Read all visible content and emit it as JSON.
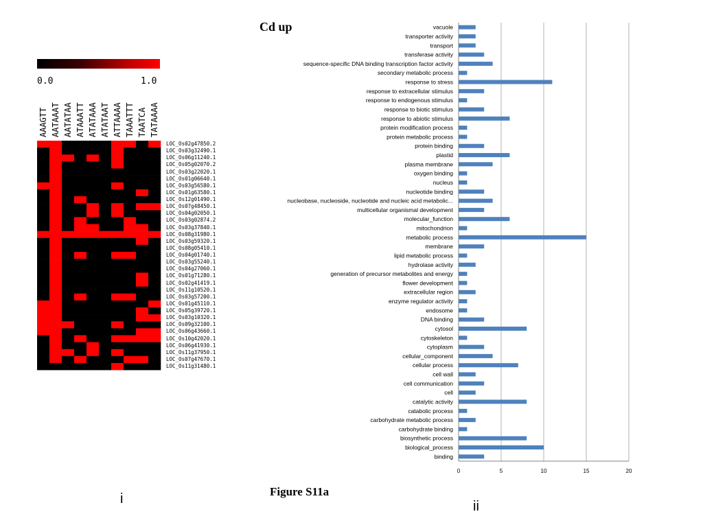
{
  "header": {
    "title": "Cd up"
  },
  "caption": {
    "figure": "Figure S11a",
    "panel_left": "i",
    "panel_right": "ii"
  },
  "colorbar": {
    "min_label": "0.0",
    "max_label": "1.0",
    "low_color": "#000000",
    "high_color": "#ff0000"
  },
  "heatmap": {
    "on_color": "#ff0000",
    "off_color": "#000000",
    "columns": [
      "AAAGTT",
      "AATAAAT",
      "AATATAA",
      "ATAAATT",
      "ATATAAA",
      "ATATAAT",
      "ATTAAAA",
      "TAAATTT",
      "TAATCA",
      "TATAAAA"
    ],
    "rows": [
      "LOC_Os02g47850.2",
      "LOC_Os03g32490.1",
      "LOC_Os06g11240.1",
      "LOC_Os05g02070.2",
      "LOC_Os03g22020.1",
      "LOC_Os01g06640.1",
      "LOC_Os03g56580.1",
      "LOC_Os01g63580.1",
      "LOC_Os12g01490.1",
      "LOC_Os07g48450.1",
      "LOC_Os04g02050.1",
      "LOC_Os03g02874.2",
      "LOC_Os03g37840.1",
      "LOC_Os08g31980.1",
      "LOC_Os03g59320.1",
      "LOC_Os08g05410.1",
      "LOC_Os04g01740.1",
      "LOC_Os03g55240.1",
      "LOC_Os04g27060.1",
      "LOC_Os01g71280.1",
      "LOC_Os02g41419.1",
      "LOC_Os11g10520.1",
      "LOC_Os03g57200.1",
      "LOC_Os01g45110.1",
      "LOC_Os05g39720.1",
      "LOC_Os03g10320.1",
      "LOC_Os09g32100.1",
      "LOC_Os06g43660.1",
      "LOC_Os10g42020.1",
      "LOC_Os06g41930.1",
      "LOC_Os11g37950.1",
      "LOC_Os07g47670.1",
      "LOC_Os11g31480.1"
    ],
    "cells": [
      [
        1,
        1,
        0,
        0,
        0,
        0,
        1,
        1,
        0,
        1
      ],
      [
        0,
        1,
        0,
        0,
        0,
        0,
        1,
        0,
        0,
        0
      ],
      [
        0,
        1,
        1,
        0,
        1,
        0,
        1,
        0,
        0,
        0
      ],
      [
        0,
        1,
        0,
        0,
        0,
        0,
        1,
        0,
        0,
        0
      ],
      [
        0,
        1,
        0,
        0,
        0,
        0,
        0,
        0,
        0,
        0
      ],
      [
        0,
        1,
        0,
        0,
        0,
        0,
        0,
        0,
        0,
        0
      ],
      [
        1,
        1,
        0,
        0,
        0,
        0,
        1,
        0,
        0,
        0
      ],
      [
        0,
        1,
        0,
        0,
        0,
        0,
        0,
        0,
        1,
        0
      ],
      [
        0,
        1,
        0,
        1,
        0,
        0,
        0,
        0,
        0,
        0
      ],
      [
        0,
        1,
        0,
        0,
        1,
        0,
        1,
        0,
        1,
        1
      ],
      [
        0,
        1,
        0,
        0,
        1,
        0,
        1,
        0,
        0,
        0
      ],
      [
        0,
        1,
        0,
        1,
        0,
        0,
        0,
        1,
        0,
        0
      ],
      [
        0,
        1,
        0,
        1,
        1,
        0,
        0,
        1,
        1,
        0
      ],
      [
        1,
        1,
        1,
        1,
        1,
        1,
        1,
        1,
        1,
        1
      ],
      [
        0,
        1,
        0,
        0,
        0,
        0,
        0,
        0,
        1,
        0
      ],
      [
        0,
        1,
        0,
        0,
        0,
        0,
        0,
        0,
        0,
        0
      ],
      [
        0,
        1,
        0,
        1,
        0,
        0,
        1,
        1,
        0,
        0
      ],
      [
        0,
        1,
        0,
        0,
        0,
        0,
        0,
        0,
        0,
        0
      ],
      [
        0,
        1,
        0,
        0,
        0,
        0,
        0,
        0,
        0,
        0
      ],
      [
        0,
        1,
        0,
        0,
        0,
        0,
        0,
        0,
        1,
        0
      ],
      [
        0,
        1,
        0,
        0,
        0,
        0,
        0,
        0,
        1,
        0
      ],
      [
        0,
        1,
        0,
        0,
        0,
        0,
        0,
        0,
        0,
        0
      ],
      [
        0,
        1,
        0,
        1,
        0,
        0,
        1,
        1,
        0,
        0
      ],
      [
        1,
        1,
        0,
        0,
        0,
        0,
        0,
        0,
        0,
        1
      ],
      [
        1,
        1,
        0,
        0,
        0,
        0,
        0,
        0,
        1,
        0
      ],
      [
        1,
        1,
        0,
        0,
        0,
        0,
        0,
        0,
        1,
        1
      ],
      [
        1,
        1,
        1,
        0,
        0,
        0,
        1,
        0,
        0,
        0
      ],
      [
        1,
        1,
        0,
        0,
        0,
        0,
        0,
        0,
        1,
        1
      ],
      [
        0,
        1,
        0,
        1,
        0,
        0,
        1,
        1,
        1,
        1
      ],
      [
        0,
        1,
        0,
        0,
        1,
        0,
        0,
        0,
        0,
        0
      ],
      [
        0,
        1,
        1,
        0,
        1,
        0,
        1,
        0,
        0,
        0
      ],
      [
        0,
        1,
        0,
        1,
        0,
        0,
        0,
        1,
        1,
        0
      ],
      [
        0,
        0,
        0,
        0,
        0,
        0,
        1,
        0,
        0,
        0
      ]
    ]
  },
  "chart_data": {
    "type": "bar",
    "orientation": "horizontal",
    "bar_color": "#4f81bd",
    "grid": true,
    "xlim": [
      0,
      20
    ],
    "xticks": [
      0,
      5,
      10,
      15,
      20
    ],
    "categories": [
      "vacuole",
      "transporter activity",
      "transport",
      "transferase activity",
      "sequence-specific DNA binding transcription factor activity",
      "secondary metabolic process",
      "response to stress",
      "response to extracellular stimulus",
      "response to endogenous stimulus",
      "response to biotic stimulus",
      "response to abiotic stimulus",
      "protein modification process",
      "protein metabolic process",
      "protein binding",
      "plastid",
      "plasma membrane",
      "oxygen binding",
      "nucleus",
      "nucleotide binding",
      "nucleobase, nucleoside, nucleotide and nucleic acid metabolic...",
      "multicellular organismal development",
      "molecular_function",
      "mitochondrion",
      "metabolic process",
      "membrane",
      "lipid metabolic process",
      "hydrolase activity",
      "generation of precursor metabolites and energy",
      "flower development",
      "extracellular region",
      "enzyme regulator activity",
      "endosome",
      "DNA binding",
      "cytosol",
      "cytoskeleton",
      "cytoplasm",
      "cellular_component",
      "cellular process",
      "cell wall",
      "cell communication",
      "cell",
      "catalytic activity",
      "catabolic process",
      "carbohydrate metabolic process",
      "carbohydrate binding",
      "biosynthetic process",
      "biological_process",
      "binding"
    ],
    "values": [
      2,
      2,
      2,
      3,
      4,
      1,
      11,
      3,
      1,
      3,
      6,
      1,
      1,
      3,
      6,
      4,
      1,
      1,
      3,
      4,
      3,
      6,
      1,
      15,
      3,
      1,
      2,
      1,
      1,
      2,
      1,
      1,
      3,
      8,
      1,
      3,
      4,
      7,
      2,
      3,
      2,
      8,
      1,
      2,
      1,
      8,
      10,
      3
    ]
  }
}
